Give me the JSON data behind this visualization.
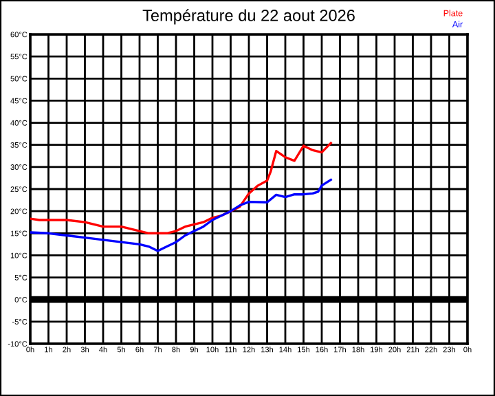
{
  "chart_data": {
    "type": "line",
    "title": "Température du 22 aout 2026",
    "series": [
      {
        "name": "Plate",
        "color": "#ff0000",
        "x": [
          "2026-08-22T00:00",
          "2026-08-22T00:30",
          "2026-08-22T01:00",
          "2026-08-22T02:00",
          "2026-08-22T03:00",
          "2026-08-22T03:30",
          "2026-08-22T04:00",
          "2026-08-22T05:00",
          "2026-08-22T05:30",
          "2026-08-22T06:00",
          "2026-08-22T06:30",
          "2026-08-22T07:00",
          "2026-08-22T07:30",
          "2026-08-22T08:00",
          "2026-08-22T08:30",
          "2026-08-22T09:00",
          "2026-08-22T09:30",
          "2026-08-22T10:00",
          "2026-08-22T10:30",
          "2026-08-22T11:00",
          "2026-08-22T11:30",
          "2026-08-22T12:00",
          "2026-08-22T12:30",
          "2026-08-22T13:00",
          "2026-08-22T13:12",
          "2026-08-22T13:30",
          "2026-08-22T14:00",
          "2026-08-22T14:30",
          "2026-08-22T15:00",
          "2026-08-22T15:30",
          "2026-08-22T16:00",
          "2026-08-22T16:30"
        ],
        "values": [
          18.3,
          18,
          18,
          18,
          17.5,
          17,
          16.5,
          16.5,
          16,
          15.5,
          15,
          15,
          15,
          15.5,
          16.5,
          17,
          17.5,
          18.5,
          19,
          20,
          21,
          24,
          25.8,
          26.9,
          29,
          33.6,
          32.2,
          31.4,
          34.8,
          33.8,
          33.3,
          35.4
        ]
      },
      {
        "name": "Air",
        "color": "#0000ff",
        "x": [
          "2026-08-22T00:00",
          "2026-08-22T01:00",
          "2026-08-22T02:00",
          "2026-08-22T03:00",
          "2026-08-22T04:00",
          "2026-08-22T05:00",
          "2026-08-22T06:00",
          "2026-08-22T06:30",
          "2026-08-22T07:00",
          "2026-08-22T07:30",
          "2026-08-22T08:00",
          "2026-08-22T08:30",
          "2026-08-22T09:00",
          "2026-08-22T09:30",
          "2026-08-22T10:00",
          "2026-08-22T10:30",
          "2026-08-22T11:00",
          "2026-08-22T11:30",
          "2026-08-22T12:00",
          "2026-08-22T13:00",
          "2026-08-22T13:30",
          "2026-08-22T14:00",
          "2026-08-22T14:30",
          "2026-08-22T15:00",
          "2026-08-22T15:30",
          "2026-08-22T15:48",
          "2026-08-22T16:00",
          "2026-08-22T16:30"
        ],
        "values": [
          15.2,
          15,
          14.5,
          14,
          13.5,
          13,
          12.5,
          12,
          11,
          12,
          13,
          14.5,
          15.5,
          16.5,
          18,
          19,
          20,
          21.3,
          22.1,
          22,
          23.7,
          23.2,
          23.8,
          23.8,
          24,
          24.4,
          25.8,
          27.1
        ]
      }
    ],
    "xlim": [
      "2026-08-22T00:00",
      "2026-08-23T00:00"
    ],
    "xticks": [
      {
        "value": "2026-08-22T00:00",
        "label": "0h"
      },
      {
        "value": "2026-08-22T01:00",
        "label": "1h"
      },
      {
        "value": "2026-08-22T02:00",
        "label": "2h"
      },
      {
        "value": "2026-08-22T03:00",
        "label": "3h"
      },
      {
        "value": "2026-08-22T04:00",
        "label": "4h"
      },
      {
        "value": "2026-08-22T05:00",
        "label": "5h"
      },
      {
        "value": "2026-08-22T06:00",
        "label": "6h"
      },
      {
        "value": "2026-08-22T07:00",
        "label": "7h"
      },
      {
        "value": "2026-08-22T08:00",
        "label": "8h"
      },
      {
        "value": "2026-08-22T09:00",
        "label": "9h"
      },
      {
        "value": "2026-08-22T10:00",
        "label": "10h"
      },
      {
        "value": "2026-08-22T11:00",
        "label": "11h"
      },
      {
        "value": "2026-08-22T12:00",
        "label": "12h"
      },
      {
        "value": "2026-08-22T13:00",
        "label": "13h"
      },
      {
        "value": "2026-08-22T14:00",
        "label": "14h"
      },
      {
        "value": "2026-08-22T15:00",
        "label": "15h"
      },
      {
        "value": "2026-08-22T16:00",
        "label": "16h"
      },
      {
        "value": "2026-08-22T17:00",
        "label": "17h"
      },
      {
        "value": "2026-08-22T18:00",
        "label": "18h"
      },
      {
        "value": "2026-08-22T19:00",
        "label": "19h"
      },
      {
        "value": "2026-08-22T20:00",
        "label": "20h"
      },
      {
        "value": "2026-08-22T21:00",
        "label": "21h"
      },
      {
        "value": "2026-08-22T22:00",
        "label": "22h"
      },
      {
        "value": "2026-08-22T23:00",
        "label": "23h"
      },
      {
        "value": "2026-08-23T00:00",
        "label": "0h"
      }
    ],
    "ylim": [
      -10,
      60
    ],
    "yticks": [
      {
        "value": -10,
        "label": "-10°C"
      },
      {
        "value": -5,
        "label": "-5°C"
      },
      {
        "value": 0,
        "label": "0°C"
      },
      {
        "value": 5,
        "label": "5°C"
      },
      {
        "value": 10,
        "label": "10°C"
      },
      {
        "value": 15,
        "label": "15°C"
      },
      {
        "value": 20,
        "label": "20°C"
      },
      {
        "value": 25,
        "label": "25°C"
      },
      {
        "value": 30,
        "label": "30°C"
      },
      {
        "value": 35,
        "label": "35°C"
      },
      {
        "value": 40,
        "label": "40°C"
      },
      {
        "value": 45,
        "label": "45°C"
      },
      {
        "value": 50,
        "label": "50°C"
      },
      {
        "value": 55,
        "label": "55°C"
      },
      {
        "value": 60,
        "label": "60°C"
      }
    ],
    "ref_lines": [
      {
        "axis": "y",
        "value": 0,
        "color": "#000000"
      }
    ],
    "grid": true,
    "legend": "top right",
    "marker": "none",
    "line_style": "solid"
  }
}
